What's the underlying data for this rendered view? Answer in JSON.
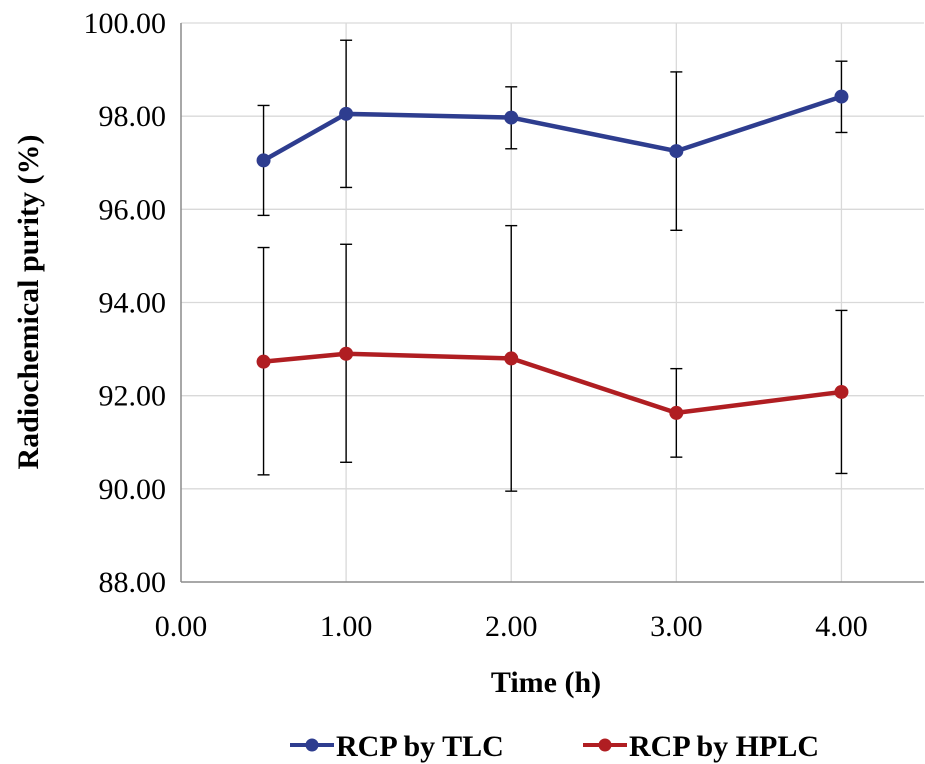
{
  "chart_data": {
    "type": "line",
    "xlabel": "Time (h)",
    "ylabel": "Radiochemical purity (%)",
    "xlim": [
      0,
      4.5
    ],
    "ylim": [
      88,
      100
    ],
    "x_ticks": [
      0,
      1,
      2,
      3,
      4
    ],
    "x_tick_labels": [
      "0.00",
      "1.00",
      "2.00",
      "3.00",
      "4.00"
    ],
    "y_ticks": [
      88,
      90,
      92,
      94,
      96,
      98,
      100
    ],
    "y_tick_labels": [
      "88.00",
      "90.00",
      "92.00",
      "94.00",
      "96.00",
      "98.00",
      "100.00"
    ],
    "grid": "vertical and horizontal major gridlines",
    "legend_position": "bottom",
    "x": [
      0.5,
      1.0,
      2.0,
      3.0,
      4.0
    ],
    "series": [
      {
        "name": "RCP by TLC",
        "color": "#2E3D8F",
        "values": [
          97.05,
          98.05,
          97.97,
          97.25,
          98.42
        ],
        "error_low": [
          95.87,
          96.47,
          97.3,
          95.55,
          97.65
        ],
        "error_high": [
          98.23,
          99.63,
          98.63,
          98.95,
          99.18
        ]
      },
      {
        "name": "RCP by HPLC",
        "color": "#B01E22",
        "values": [
          92.73,
          92.9,
          92.8,
          91.63,
          92.08
        ],
        "error_low": [
          90.3,
          90.57,
          89.95,
          90.68,
          90.33
        ],
        "error_high": [
          95.18,
          95.25,
          95.65,
          92.58,
          93.83
        ]
      }
    ]
  }
}
